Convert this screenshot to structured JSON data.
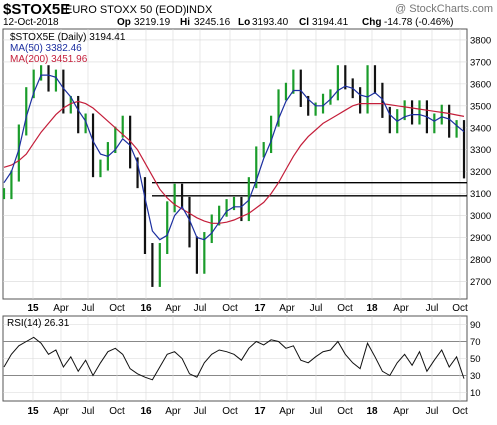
{
  "header": {
    "symbol": "$STOX5E",
    "description": "EURO STOXX 50 (EOD)",
    "exchange": "INDX",
    "watermark": "@ StockCharts.com",
    "date": "12-Oct-2018",
    "open_label": "Op",
    "open": "3219.19",
    "high_label": "Hi",
    "high": "3245.16",
    "low_label": "Lo",
    "low": "3193.40",
    "close_label": "Cl",
    "close": "3194.41",
    "change_label": "Chg",
    "change": "-14.78 (-0.46%)"
  },
  "legend": {
    "price": "$STOX5E (Daily) 3194.41",
    "ma50": "MA(50) 3382.46",
    "ma200": "MA(200) 3451.96"
  },
  "rsi_panel": {
    "label": "RSI(14) 26.31"
  },
  "colors": {
    "price_up": "#1a9c2a",
    "price_down": "#111111",
    "ma50": "#1c2fa0",
    "ma200": "#c41e3a",
    "rsi_line": "#111111",
    "grid": "#d8d8d8",
    "frame": "#555555",
    "annotation_line": "#000000"
  },
  "chart_data": [
    {
      "type": "line",
      "ylim": [
        2620,
        3850
      ],
      "y_ticks": [
        2700,
        2800,
        2900,
        3000,
        3100,
        3200,
        3300,
        3400,
        3500,
        3600,
        3700,
        3800
      ],
      "x_ticks": [
        "15",
        "Apr",
        "Jul",
        "Oct",
        "16",
        "Apr",
        "Jul",
        "Oct",
        "17",
        "Apr",
        "Jul",
        "Oct",
        "18",
        "Apr",
        "Jul",
        "Oct"
      ],
      "grid": true,
      "legend_position": "top-left",
      "horizontal_lines": [
        3150,
        3090
      ],
      "series": [
        {
          "name": "$STOX5E (Daily)",
          "values": [
            3100,
            3180,
            3390,
            3560,
            3640,
            3660,
            3590,
            3640,
            3490,
            3520,
            3400,
            3440,
            3200,
            3230,
            3310,
            3380,
            3430,
            3240,
            3150,
            2850,
            2700,
            2850,
            3040,
            3120,
            3060,
            2880,
            2760,
            2900,
            2980,
            3020,
            3050,
            3060,
            3000,
            3150,
            3290,
            3310,
            3430,
            3550,
            3580,
            3640,
            3520,
            3480,
            3490,
            3530,
            3550,
            3660,
            3600,
            3560,
            3490,
            3660,
            3580,
            3470,
            3400,
            3460,
            3500,
            3440,
            3500,
            3400,
            3440,
            3480,
            3380,
            3410,
            3194.41
          ]
        },
        {
          "name": "MA(50)",
          "values": [
            3150,
            3200,
            3300,
            3450,
            3560,
            3640,
            3640,
            3630,
            3580,
            3540,
            3480,
            3430,
            3340,
            3280,
            3270,
            3300,
            3350,
            3320,
            3240,
            3080,
            2930,
            2890,
            2910,
            3000,
            3040,
            2980,
            2900,
            2890,
            2920,
            2970,
            3020,
            3040,
            3040,
            3070,
            3160,
            3260,
            3340,
            3440,
            3520,
            3570,
            3570,
            3530,
            3500,
            3500,
            3530,
            3570,
            3590,
            3580,
            3550,
            3540,
            3560,
            3530,
            3460,
            3430,
            3450,
            3460,
            3460,
            3450,
            3430,
            3450,
            3440,
            3410,
            3382.46
          ]
        },
        {
          "name": "MA(200)",
          "values": [
            3220,
            3230,
            3250,
            3280,
            3330,
            3380,
            3420,
            3460,
            3490,
            3510,
            3520,
            3510,
            3490,
            3460,
            3430,
            3400,
            3370,
            3340,
            3300,
            3240,
            3180,
            3120,
            3080,
            3050,
            3030,
            3010,
            2990,
            2975,
            2965,
            2965,
            2970,
            2980,
            2995,
            3010,
            3035,
            3060,
            3100,
            3150,
            3210,
            3270,
            3320,
            3360,
            3390,
            3420,
            3440,
            3460,
            3480,
            3500,
            3510,
            3510,
            3510,
            3510,
            3505,
            3500,
            3495,
            3490,
            3485,
            3480,
            3475,
            3470,
            3465,
            3458,
            3451.96
          ]
        }
      ]
    },
    {
      "type": "line",
      "ylim": [
        0,
        100
      ],
      "y_ticks": [
        10,
        30,
        50,
        70,
        90
      ],
      "reference_lines": [
        70,
        30
      ],
      "x_ticks": [
        "15",
        "Apr",
        "Jul",
        "Oct",
        "16",
        "Apr",
        "Jul",
        "Oct",
        "17",
        "Apr",
        "Jul",
        "Oct",
        "18",
        "Apr",
        "Jul",
        "Oct"
      ],
      "series": [
        {
          "name": "RSI(14)",
          "values": [
            40,
            55,
            65,
            70,
            75,
            68,
            55,
            60,
            40,
            52,
            35,
            48,
            30,
            45,
            58,
            62,
            55,
            38,
            32,
            28,
            25,
            40,
            55,
            58,
            50,
            32,
            28,
            45,
            55,
            60,
            58,
            55,
            48,
            62,
            70,
            66,
            72,
            70,
            62,
            65,
            48,
            45,
            52,
            58,
            60,
            70,
            55,
            45,
            38,
            68,
            52,
            35,
            30,
            45,
            55,
            42,
            58,
            35,
            48,
            60,
            40,
            52,
            26.31
          ]
        }
      ]
    }
  ]
}
